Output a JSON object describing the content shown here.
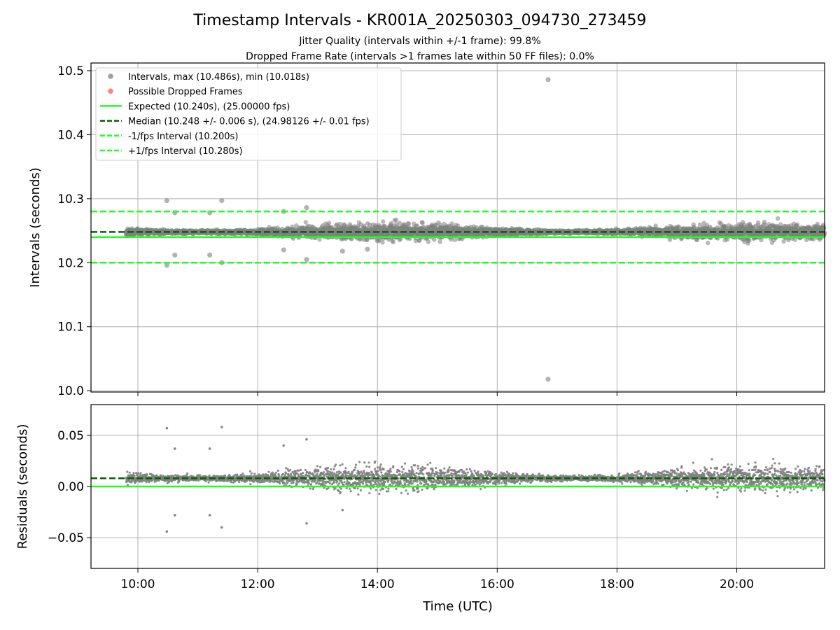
{
  "title": "Timestamp Intervals - KR001A_20250303_094730_273459",
  "subtitle_lines": [
    "Jitter Quality (intervals within +/-1 frame): 99.8%",
    "Dropped Frame Rate (intervals >1 frames late within 50 FF files): 0.0%"
  ],
  "colors": {
    "points": "#808080",
    "dropped": "#ff5a5a",
    "expected": "#1fff1f",
    "median": "#006400",
    "interval_band": "#1fff1f",
    "grid": "#b0b0b0"
  },
  "chart_data": [
    {
      "type": "scatter",
      "panel": "top",
      "ylabel": "Intervals (seconds)",
      "xlabel": "",
      "xlim": [
        "09:13",
        "21:28"
      ],
      "ylim": [
        9.998,
        10.512
      ],
      "grid": true,
      "xticks": [
        "10:00",
        "12:00",
        "14:00",
        "16:00",
        "18:00",
        "20:00"
      ],
      "yticks": [
        10.0,
        10.1,
        10.2,
        10.3,
        10.4,
        10.5
      ],
      "ytick_labels": [
        "10.0",
        "10.1",
        "10.2",
        "10.3",
        "10.4",
        "10.5"
      ],
      "legend_position": "upper-left",
      "series": [
        {
          "name": "Intervals, max (10.486s), min (10.018s)",
          "kind": "points",
          "x_range": [
            "09:48",
            "21:28"
          ],
          "y_center": 10.248,
          "y_spread": 0.006,
          "count": 4100,
          "outliers": [
            {
              "x": "16:51",
              "y": 10.486
            },
            {
              "x": "16:51",
              "y": 10.018
            },
            {
              "x": "10:29",
              "y": 10.297
            },
            {
              "x": "11:24",
              "y": 10.297
            },
            {
              "x": "12:49",
              "y": 10.286
            },
            {
              "x": "12:26",
              "y": 10.28
            },
            {
              "x": "10:29",
              "y": 10.196
            },
            {
              "x": "11:24",
              "y": 10.2
            },
            {
              "x": "12:49",
              "y": 10.205
            },
            {
              "x": "10:37",
              "y": 10.212
            },
            {
              "x": "11:12",
              "y": 10.212
            },
            {
              "x": "12:26",
              "y": 10.22
            },
            {
              "x": "13:25",
              "y": 10.218
            },
            {
              "x": "13:50",
              "y": 10.221
            },
            {
              "x": "10:37",
              "y": 10.278
            },
            {
              "x": "11:12",
              "y": 10.278
            }
          ]
        },
        {
          "name": "Possible Dropped Frames",
          "kind": "points",
          "values": []
        },
        {
          "name": "Expected (10.240s), (25.00000 fps)",
          "kind": "hline",
          "y": 10.24,
          "style": "solid"
        },
        {
          "name": "Median (10.248 +/- 0.006 s), (24.98126 +/- 0.01 fps)",
          "kind": "hline",
          "y": 10.248,
          "style": "dashed"
        },
        {
          "name": "-1/fps Interval (10.200s)",
          "kind": "hline",
          "y": 10.2,
          "style": "dashed"
        },
        {
          "name": "+1/fps Interval (10.280s)",
          "kind": "hline",
          "y": 10.28,
          "style": "dashed"
        }
      ]
    },
    {
      "type": "scatter",
      "panel": "bottom",
      "ylabel": "Residuals (seconds)",
      "xlabel": "Time (UTC)",
      "xlim": [
        "09:13",
        "21:28"
      ],
      "ylim": [
        -0.08,
        0.08
      ],
      "grid": true,
      "xticks": [
        "10:00",
        "12:00",
        "14:00",
        "16:00",
        "18:00",
        "20:00"
      ],
      "yticks": [
        -0.05,
        0.0,
        0.05
      ],
      "ytick_labels": [
        "−0.05",
        "0.00",
        "0.05"
      ],
      "series": [
        {
          "kind": "points",
          "x_range": [
            "09:48",
            "21:28"
          ],
          "y_center": 0.008,
          "y_spread": 0.006,
          "count": 4100,
          "outliers": [
            {
              "x": "10:29",
              "y": 0.057
            },
            {
              "x": "11:24",
              "y": 0.058
            },
            {
              "x": "12:49",
              "y": 0.046
            },
            {
              "x": "12:26",
              "y": 0.04
            },
            {
              "x": "10:37",
              "y": 0.037
            },
            {
              "x": "11:12",
              "y": 0.037
            },
            {
              "x": "10:29",
              "y": -0.044
            },
            {
              "x": "11:24",
              "y": -0.04
            },
            {
              "x": "12:49",
              "y": -0.036
            },
            {
              "x": "10:37",
              "y": -0.028
            },
            {
              "x": "11:12",
              "y": -0.028
            },
            {
              "x": "13:25",
              "y": -0.023
            }
          ]
        },
        {
          "kind": "hline",
          "y": 0.0,
          "style": "solid"
        },
        {
          "kind": "hline",
          "y": 0.008,
          "style": "dashed"
        }
      ]
    }
  ]
}
